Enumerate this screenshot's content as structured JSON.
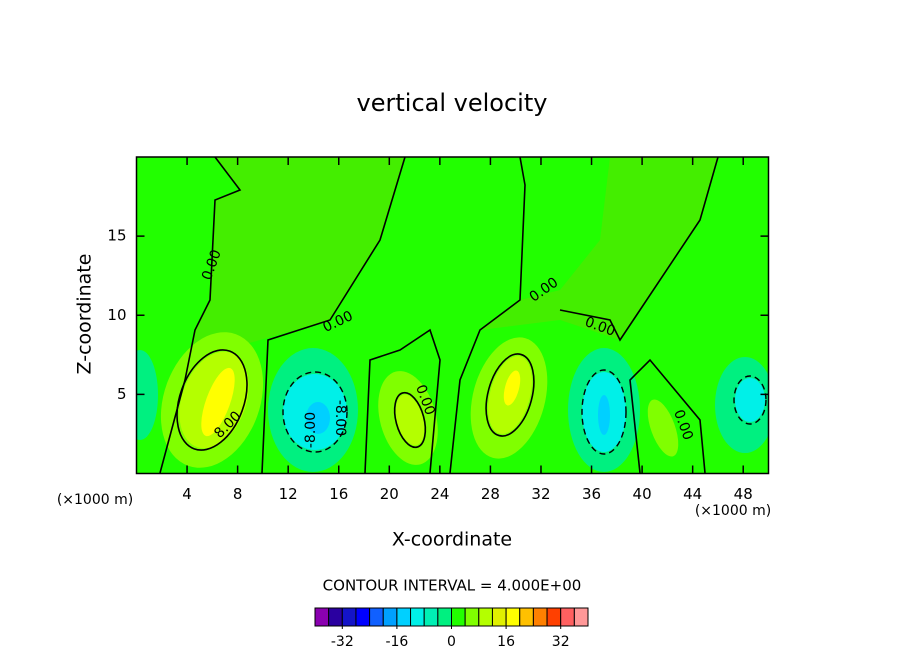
{
  "chart_data": {
    "type": "contour",
    "title": "vertical velocity",
    "x_label": "X-coordinate",
    "y_label": "Z-coordinate",
    "x_unit_label": "(×1000 m)",
    "xlim": [
      0,
      50
    ],
    "ylim": [
      0,
      20
    ],
    "xticks": [
      4,
      8,
      12,
      16,
      20,
      24,
      28,
      32,
      36,
      40,
      44,
      48
    ],
    "yticks": [
      5,
      10,
      15
    ],
    "contour_interval_label": "CONTOUR INTERVAL = 4.000E+00",
    "contour_labels": [
      "0.00",
      "0.00",
      "0.00",
      "0.00",
      "8.00",
      "-8.00",
      "-8.00",
      "0.00",
      "0.00"
    ],
    "colorbar": {
      "levels": [
        -40,
        -36,
        -32,
        -28,
        -24,
        -20,
        -16,
        -12,
        -8,
        -4,
        0,
        4,
        8,
        12,
        16,
        20,
        24,
        28,
        32,
        36,
        40
      ],
      "colors": [
        "#8a00b0",
        "#2a00a0",
        "#1414c8",
        "#0000ff",
        "#1060ff",
        "#00a0ff",
        "#00d0ff",
        "#00f0e8",
        "#00f0b4",
        "#00f080",
        "#22ff00",
        "#80ff00",
        "#b4ff00",
        "#e0f000",
        "#ffff00",
        "#ffc000",
        "#ff8000",
        "#ff4000",
        "#ff6060",
        "#ff9898"
      ],
      "ticks": [
        -32,
        -16,
        0,
        16,
        32
      ]
    }
  }
}
